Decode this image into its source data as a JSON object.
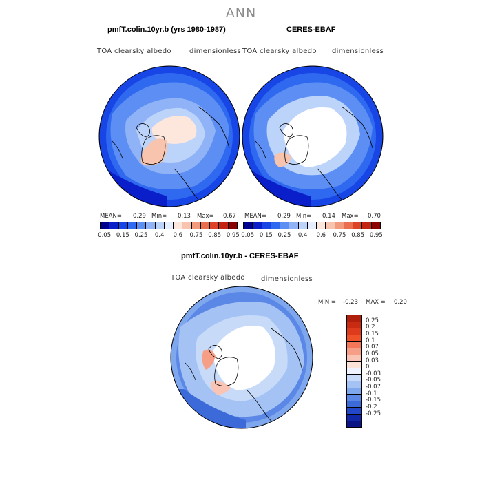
{
  "title": "ANN",
  "panels": {
    "left": {
      "title": "pmfT.colin.10yr.b (yrs 1980-1987)",
      "variable": "TOA clearsky albedo",
      "units": "dimensionless",
      "stats": {
        "mean_label": "MEAN=",
        "mean": "0.29",
        "min_label": "Min=",
        "min": "0.13",
        "max_label": "Max=",
        "max": "0.67"
      }
    },
    "right": {
      "title": "CERES-EBAF",
      "variable": "TOA clearsky albedo",
      "units": "dimensionless",
      "stats": {
        "mean_label": "MEAN=",
        "mean": "0.29",
        "min_label": "Min=",
        "min": "0.14",
        "max_label": "Max=",
        "max": "0.70"
      }
    },
    "diff": {
      "title": "pmfT.colin.10yr.b - CERES-EBAF",
      "variable": "TOA clearsky albedo",
      "units": "dimensionless",
      "stats": {
        "min_label": "MIN =",
        "min": "-0.23",
        "max_label": "MAX =",
        "max": "0.20"
      }
    }
  },
  "colorbar_top": {
    "colors": [
      "#00008e",
      "#0a1fc9",
      "#1846e6",
      "#2f69ef",
      "#5c8ef3",
      "#8fb3f6",
      "#bcd3fa",
      "#e6efff",
      "#fde6dc",
      "#f8c4ad",
      "#f29a7c",
      "#ea6f4f",
      "#dd4427",
      "#c42412",
      "#8b0000"
    ],
    "labels": [
      "0.05",
      "0.15",
      "0.25",
      "0.4",
      "0.6",
      "0.75",
      "0.85",
      "0.95"
    ]
  },
  "colorbar_diff": {
    "colors": [
      "#b01e0c",
      "#c92a12",
      "#dd3b1b",
      "#ef5228",
      "#f4775a",
      "#f79f86",
      "#f9c4b3",
      "#fce3d8",
      "#eef3ff",
      "#c7dbf9",
      "#a4c3f4",
      "#7ea7ee",
      "#5b88e6",
      "#3d6ad9",
      "#2347c9",
      "#1226a8",
      "#0a1485"
    ],
    "labels": [
      "0.25",
      "0.2",
      "0.15",
      "0.1",
      "0.07",
      "0.05",
      "0.03",
      "0",
      "-0.03",
      "-0.05",
      "-0.07",
      "-0.1",
      "-0.15",
      "-0.2",
      "-0.25"
    ]
  }
}
